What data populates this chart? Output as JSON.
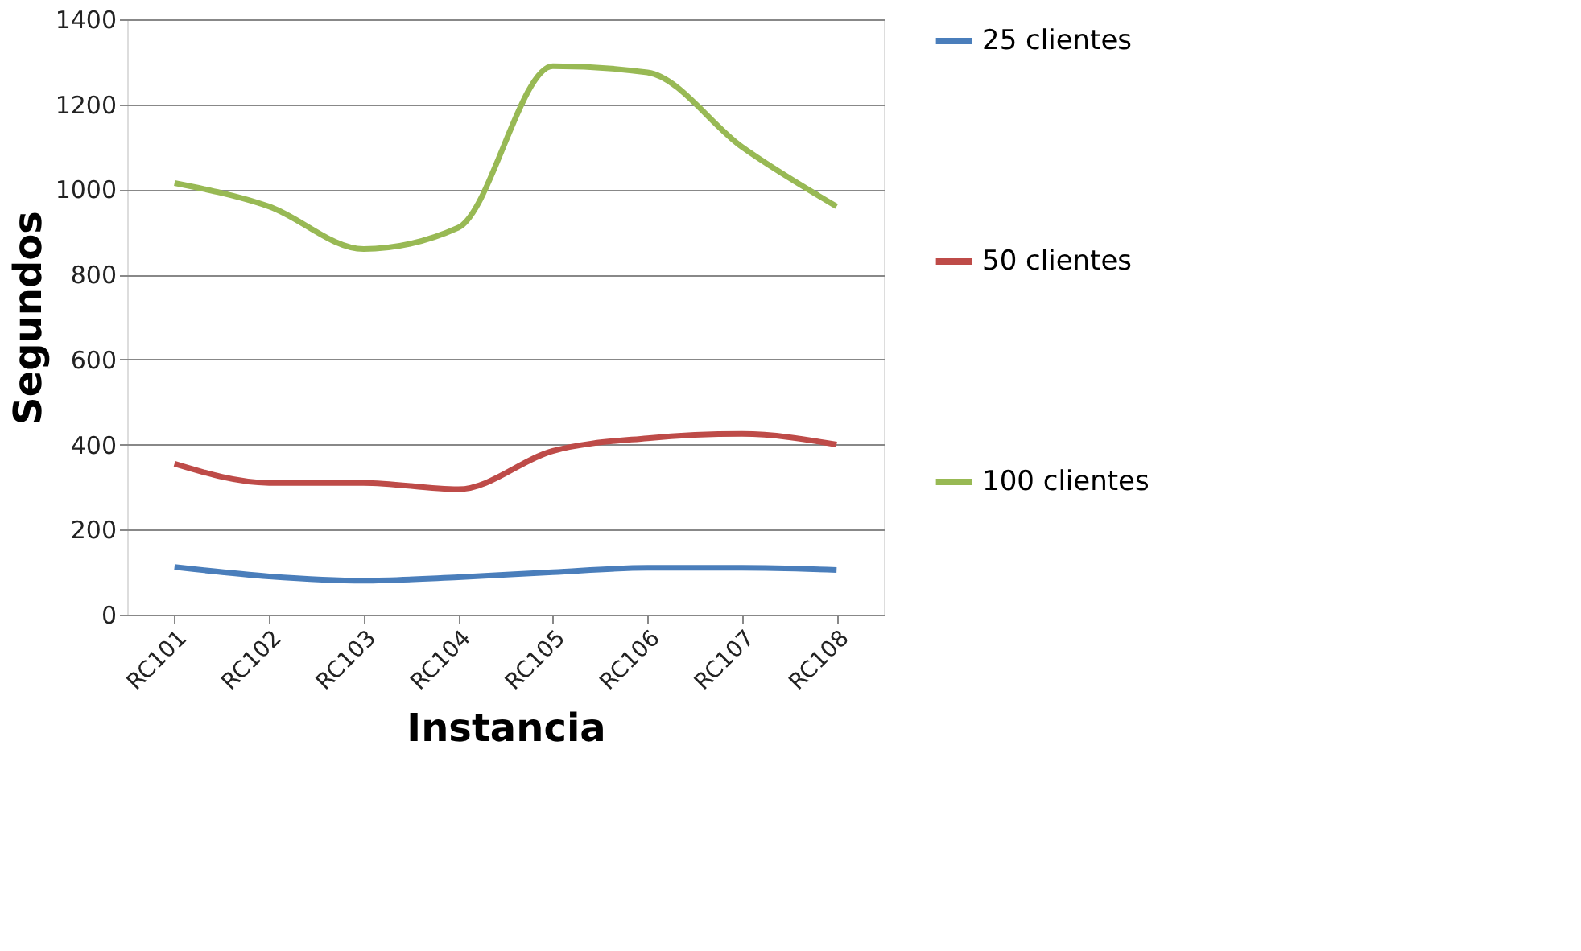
{
  "chart_data": {
    "type": "line",
    "xlabel": "Instancia",
    "ylabel": "Segundos",
    "categories": [
      "RC101",
      "RC102",
      "RC103",
      "RC104",
      "RC105",
      "RC106",
      "RC107",
      "RC108"
    ],
    "series": [
      {
        "name": "25 clientes",
        "color": "#4a7ebb",
        "values": [
          112,
          90,
          80,
          88,
          100,
          110,
          110,
          105
        ]
      },
      {
        "name": "50 clientes",
        "color": "#be4b48",
        "values": [
          355,
          310,
          310,
          295,
          385,
          415,
          425,
          400
        ]
      },
      {
        "name": "100 clientes",
        "color": "#98b954",
        "values": [
          1015,
          960,
          860,
          910,
          1290,
          1275,
          1100,
          960
        ]
      }
    ],
    "ylim": [
      0,
      1400
    ],
    "yticks": [
      0,
      200,
      400,
      600,
      800,
      1000,
      1200,
      1400
    ],
    "grid": "y",
    "legend": "right",
    "marker": "none",
    "line_style": "solid"
  }
}
